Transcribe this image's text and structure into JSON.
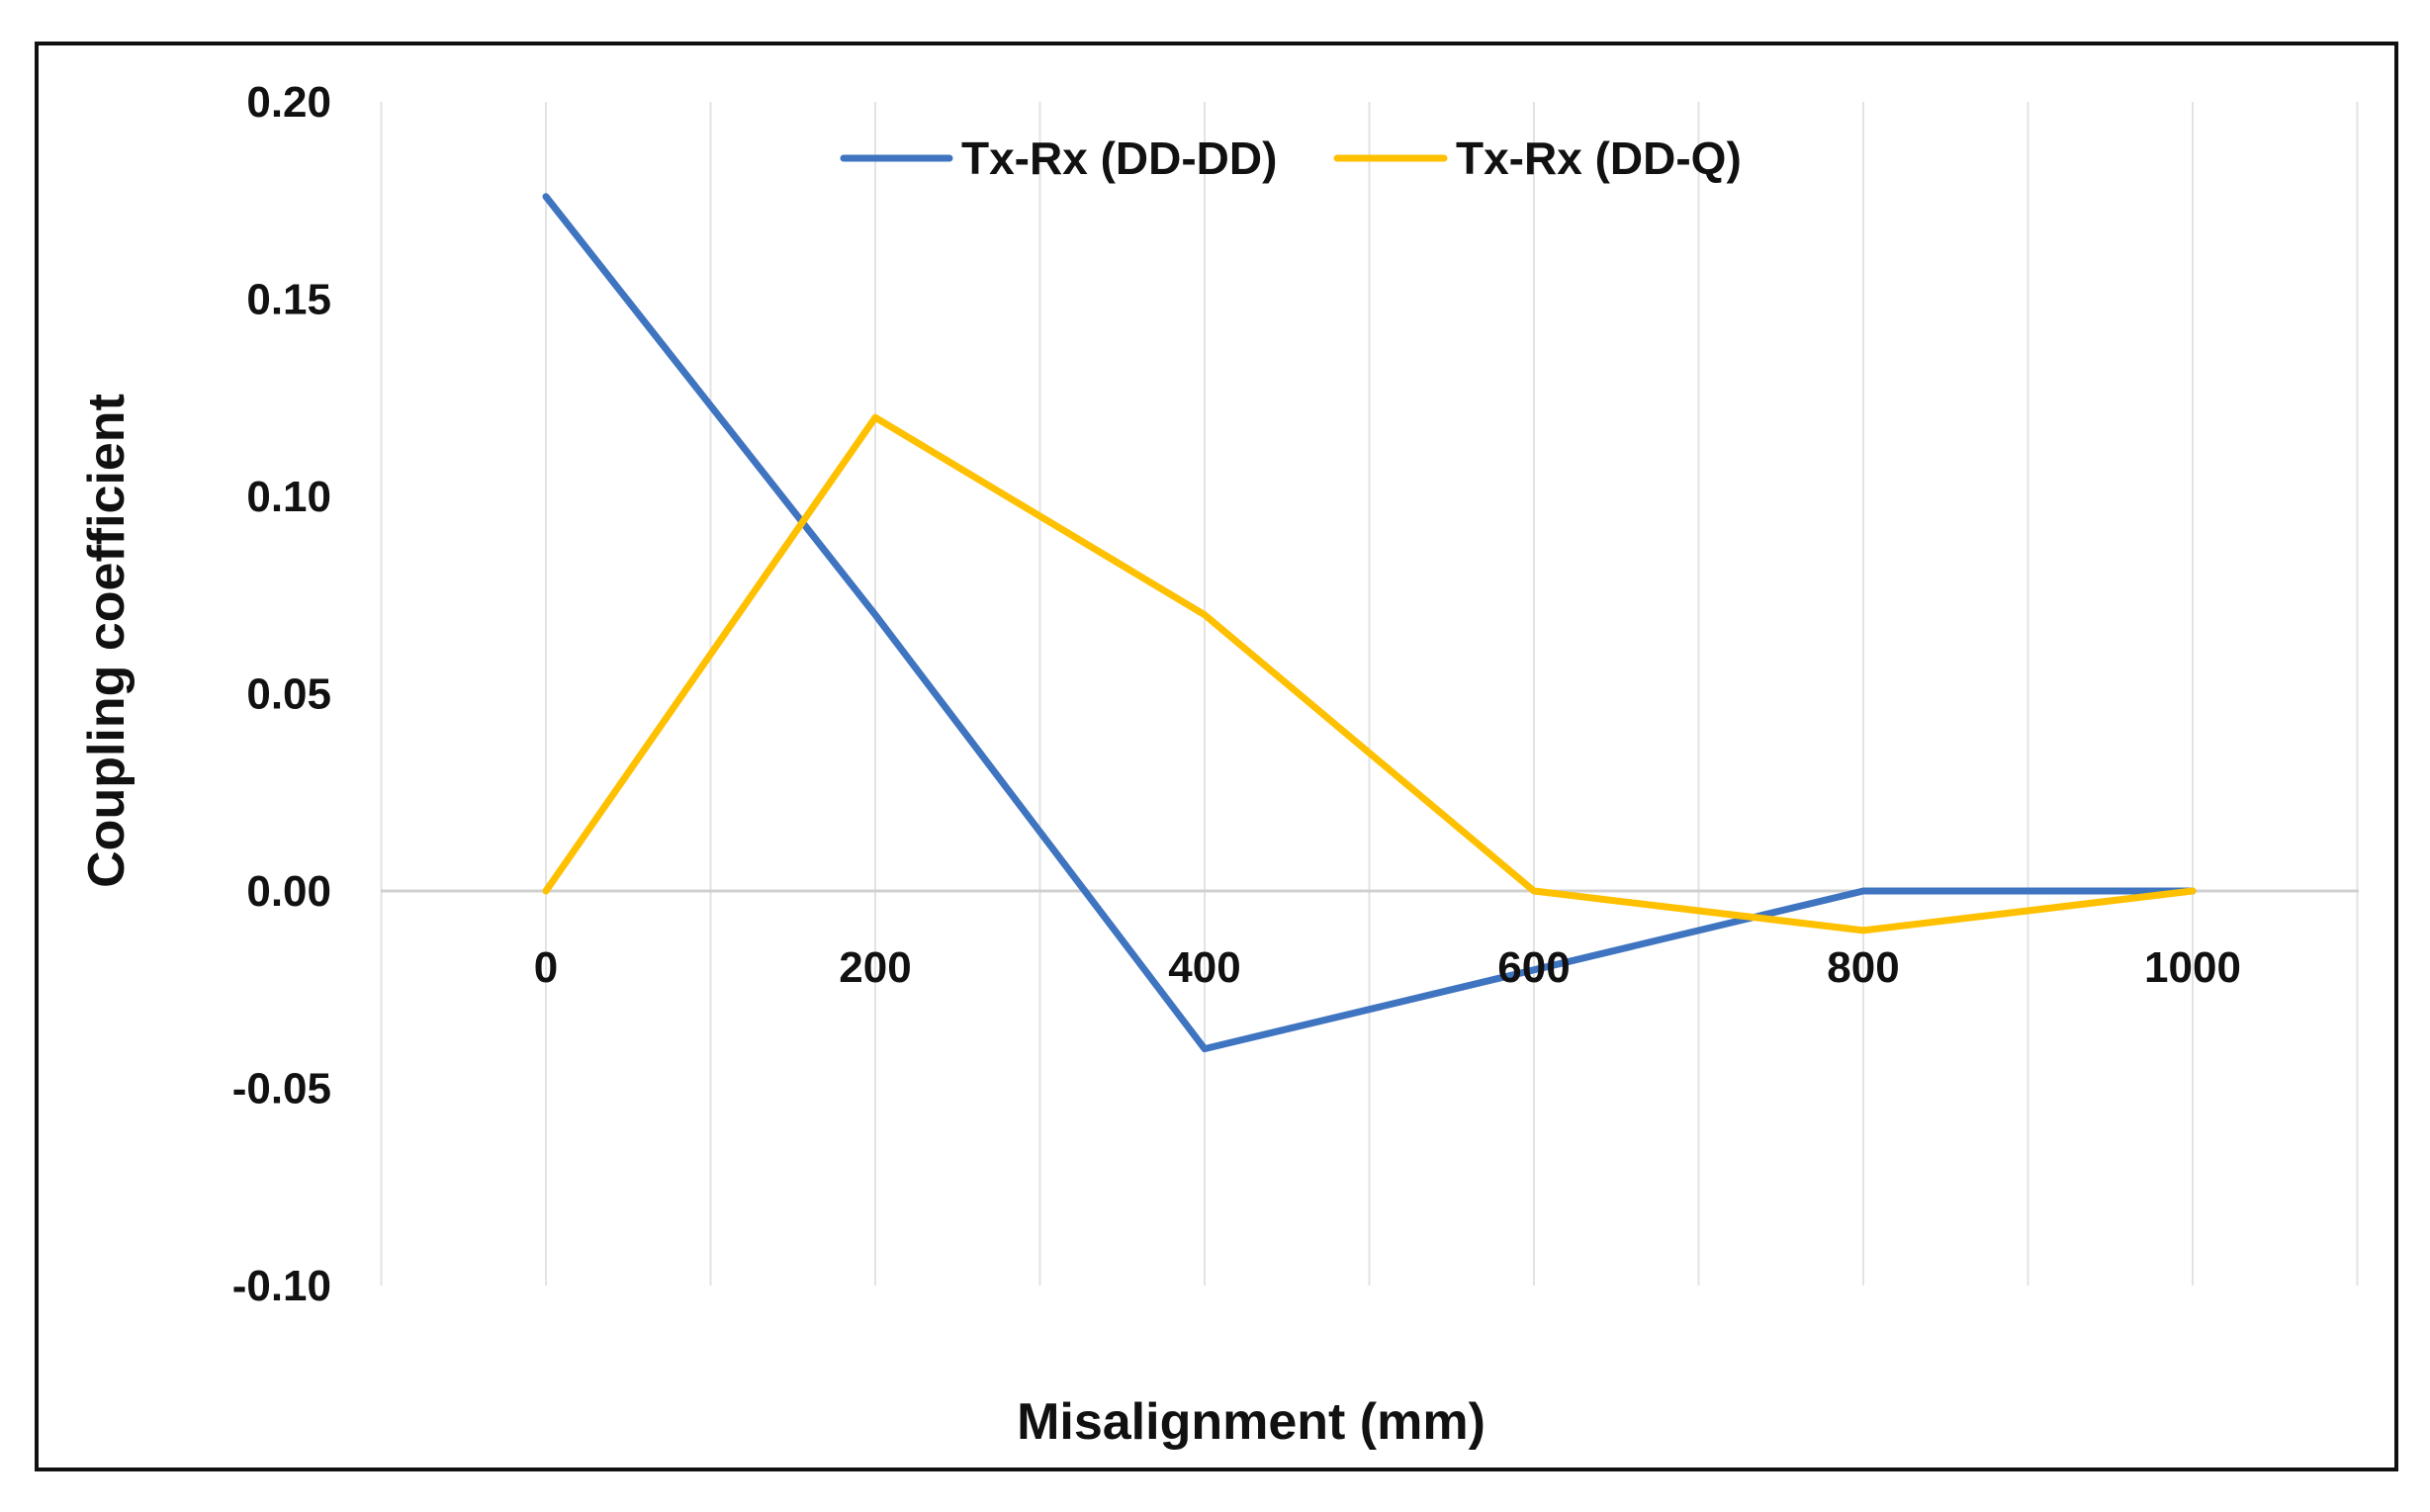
{
  "chart_data": {
    "type": "line",
    "title": "",
    "xlabel": "Misalignment (mm)",
    "ylabel": "Coupling coefficient",
    "categories": [
      "0",
      "200",
      "400",
      "600",
      "800",
      "1000"
    ],
    "x": [
      0,
      200,
      400,
      600,
      800,
      1000
    ],
    "ylim": [
      -0.1,
      0.2
    ],
    "yticks": [
      "0.20",
      "0.15",
      "0.10",
      "0.05",
      "0.00",
      "-0.05",
      "-0.10"
    ],
    "ytick_values": [
      0.2,
      0.15,
      0.1,
      0.05,
      0.0,
      -0.05,
      -0.1
    ],
    "grid": "vertical",
    "legend_position": "top-center",
    "series": [
      {
        "name": "Tx-Rx (DD-DD)",
        "color": "#3F74C0",
        "values": [
          0.176,
          0.07,
          -0.04,
          -0.02,
          0.0,
          0.0
        ]
      },
      {
        "name": "Tx-Rx (DD-Q)",
        "color": "#FFC000",
        "values": [
          0.0,
          0.12,
          0.07,
          0.0,
          -0.01,
          0.0
        ]
      }
    ]
  }
}
